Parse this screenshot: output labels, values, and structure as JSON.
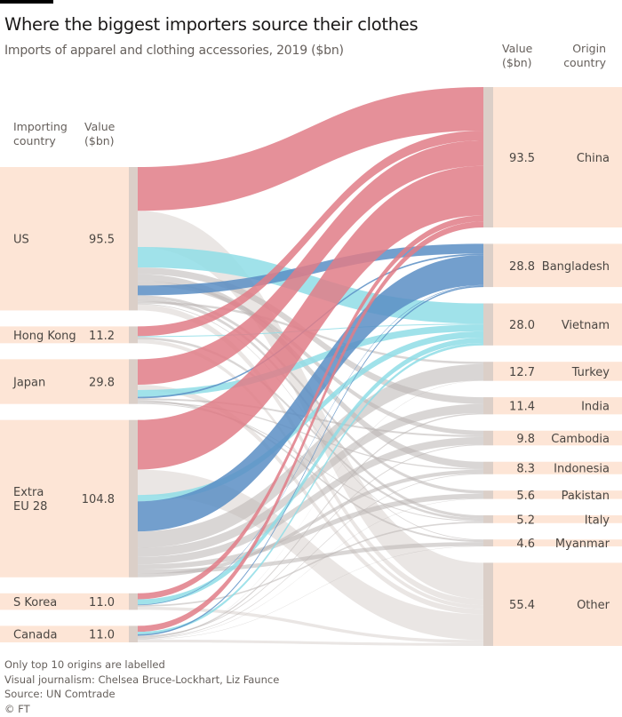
{
  "header": {
    "title": "Where the biggest importers source their clothes",
    "subtitle": "Imports of apparel and clothing accessories, 2019 ($bn)"
  },
  "left_headers": {
    "col1_line1": "Importing",
    "col1_line2": "country",
    "col2_line1": "Value",
    "col2_line2": "($bn)"
  },
  "right_headers": {
    "col1_line1": "Value",
    "col1_line2": "($bn)",
    "col2_line1": "Origin",
    "col2_line2": "country"
  },
  "footer": {
    "note": "Only top 10 origins are labelled",
    "credit": "Visual journalism: Chelsea Bruce-Lockhart, Liz Faunce",
    "source": "Source: UN Comtrade",
    "copyright": "© FT"
  },
  "colors": {
    "node_fill": "#fde5d6",
    "node_bar": "#dbcfc8",
    "china": "#e07d87",
    "bangladesh": "#5a8ec4",
    "vietnam": "#8fdde6",
    "other_origins": "#b9b5b2",
    "rest_of_world": "#e6e2df"
  },
  "chart_data": {
    "type": "sankey",
    "title": "Where the biggest importers source their clothes",
    "subtitle": "Imports of apparel and clothing accessories, 2019 ($bn)",
    "unit": "$bn",
    "importers": [
      {
        "name": "US",
        "value": "95.5"
      },
      {
        "name": "Hong Kong",
        "value": "11.2"
      },
      {
        "name": "Japan",
        "value": "29.8"
      },
      {
        "name": "Extra\nEU 28",
        "value": "104.8"
      },
      {
        "name": "S Korea",
        "value": "11.0"
      },
      {
        "name": "Canada",
        "value": "11.0"
      }
    ],
    "origins": [
      {
        "name": "China",
        "value": "93.5"
      },
      {
        "name": "Bangladesh",
        "value": "28.8"
      },
      {
        "name": "Vietnam",
        "value": "28.0"
      },
      {
        "name": "Turkey",
        "value": "12.7"
      },
      {
        "name": "India",
        "value": "11.4"
      },
      {
        "name": "Cambodia",
        "value": "9.8"
      },
      {
        "name": "Indonesia",
        "value": "8.3"
      },
      {
        "name": "Pakistan",
        "value": "5.6"
      },
      {
        "name": "Italy",
        "value": "5.2"
      },
      {
        "name": "Myanmar",
        "value": "4.6"
      },
      {
        "name": "Other",
        "value": "55.4"
      }
    ],
    "flows_estimated": [
      {
        "from": "US",
        "to": "China",
        "value": 29.0
      },
      {
        "from": "US",
        "to": "Other",
        "value": 24.0
      },
      {
        "from": "US",
        "to": "Vietnam",
        "value": 13.5
      },
      {
        "from": "US",
        "to": "India",
        "value": 4.5
      },
      {
        "from": "US",
        "to": "Indonesia",
        "value": 4.5
      },
      {
        "from": "US",
        "to": "Cambodia",
        "value": 3.0
      },
      {
        "from": "US",
        "to": "Bangladesh",
        "value": 6.5
      },
      {
        "from": "US",
        "to": "Pakistan",
        "value": 2.0
      },
      {
        "from": "US",
        "to": "Italy",
        "value": 2.0
      },
      {
        "from": "US",
        "to": "Turkey",
        "value": 1.5
      },
      {
        "from": "US",
        "to": "Myanmar",
        "value": 0.5
      },
      {
        "from": "US",
        "to": "Other",
        "value": 4.0
      },
      {
        "from": "Hong Kong",
        "to": "China",
        "value": 6.5
      },
      {
        "from": "Hong Kong",
        "to": "Vietnam",
        "value": 0.6
      },
      {
        "from": "Hong Kong",
        "to": "Italy",
        "value": 1.6
      },
      {
        "from": "Hong Kong",
        "to": "Other",
        "value": 2.5
      },
      {
        "from": "Japan",
        "to": "China",
        "value": 17.0
      },
      {
        "from": "Japan",
        "to": "Other",
        "value": 3.5
      },
      {
        "from": "Japan",
        "to": "Vietnam",
        "value": 4.5
      },
      {
        "from": "Japan",
        "to": "Bangladesh",
        "value": 1.0
      },
      {
        "from": "Japan",
        "to": "Cambodia",
        "value": 1.2
      },
      {
        "from": "Japan",
        "to": "Myanmar",
        "value": 1.2
      },
      {
        "from": "Japan",
        "to": "Indonesia",
        "value": 0.8
      },
      {
        "from": "Japan",
        "to": "Italy",
        "value": 0.6
      },
      {
        "from": "Extra\nEU 28",
        "to": "China",
        "value": 33.0
      },
      {
        "from": "Extra\nEU 28",
        "to": "Other",
        "value": 17.0
      },
      {
        "from": "Extra\nEU 28",
        "to": "Vietnam",
        "value": 4.2
      },
      {
        "from": "Extra\nEU 28",
        "to": "Bangladesh",
        "value": 20.0
      },
      {
        "from": "Extra\nEU 28",
        "to": "Turkey",
        "value": 11.0
      },
      {
        "from": "Extra\nEU 28",
        "to": "India",
        "value": 6.0
      },
      {
        "from": "Extra\nEU 28",
        "to": "Cambodia",
        "value": 5.0
      },
      {
        "from": "Extra\nEU 28",
        "to": "Pakistan",
        "value": 3.4
      },
      {
        "from": "Extra\nEU 28",
        "to": "Myanmar",
        "value": 2.7
      },
      {
        "from": "Extra\nEU 28",
        "to": "Indonesia",
        "value": 2.5
      },
      {
        "from": "S Korea",
        "to": "China",
        "value": 4.0
      },
      {
        "from": "S Korea",
        "to": "Vietnam",
        "value": 3.5
      },
      {
        "from": "S Korea",
        "to": "Bangladesh",
        "value": 0.4
      },
      {
        "from": "S Korea",
        "to": "Italy",
        "value": 1.0
      },
      {
        "from": "S Korea",
        "to": "Other",
        "value": 2.1
      },
      {
        "from": "Canada",
        "to": "China",
        "value": 4.0
      },
      {
        "from": "Canada",
        "to": "Vietnam",
        "value": 1.7
      },
      {
        "from": "Canada",
        "to": "Bangladesh",
        "value": 0.9
      },
      {
        "from": "Canada",
        "to": "Cambodia",
        "value": 0.6
      },
      {
        "from": "Canada",
        "to": "India",
        "value": 0.9
      },
      {
        "from": "Canada",
        "to": "Indonesia",
        "value": 0.5
      },
      {
        "from": "Canada",
        "to": "Pakistan",
        "value": 0.2
      },
      {
        "from": "Canada",
        "to": "Turkey",
        "value": 0.2
      },
      {
        "from": "Canada",
        "to": "Myanmar",
        "value": 0.2
      },
      {
        "from": "Canada",
        "to": "Other",
        "value": 1.8
      }
    ]
  }
}
